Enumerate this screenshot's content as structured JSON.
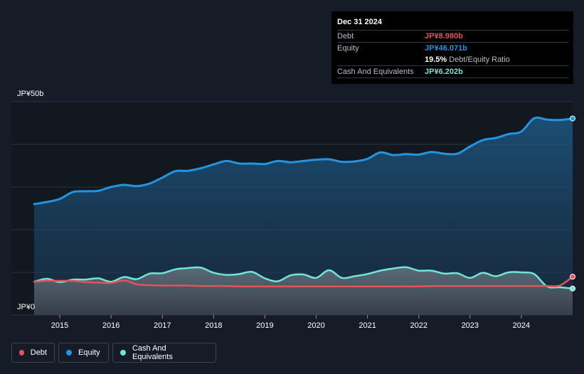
{
  "colors": {
    "debt": "#e8505b",
    "equity": "#2394df",
    "cash": "#72e5d5",
    "background": "#161c27",
    "grid": "#2d3440"
  },
  "tooltip": {
    "date": "Dec 31 2024",
    "rows": {
      "debt": {
        "label": "Debt",
        "value": "JP¥8.980b"
      },
      "equity": {
        "label": "Equity",
        "value": "JP¥46.071b"
      },
      "ratio": {
        "value": "19.5%",
        "label": "Debt/Equity Ratio"
      },
      "cash": {
        "label": "Cash And Equivalents",
        "value": "JP¥6.202b"
      }
    }
  },
  "legend": [
    {
      "key": "debt",
      "label": "Debt"
    },
    {
      "key": "equity",
      "label": "Equity"
    },
    {
      "key": "cash",
      "label": "Cash And Equivalents"
    }
  ],
  "chart_data": {
    "type": "area",
    "y_top_label": "JP¥50b",
    "y_bottom_label": "JP¥0",
    "ylim": [
      0,
      50
    ],
    "xlim": [
      2014.5,
      2025.0
    ],
    "x_ticks": [
      "2015",
      "2016",
      "2017",
      "2018",
      "2019",
      "2020",
      "2021",
      "2022",
      "2023",
      "2024"
    ],
    "grid": true,
    "legend_position": "bottom-left",
    "series": [
      {
        "name": "Equity",
        "key": "equity",
        "points": [
          [
            2014.5,
            26.0
          ],
          [
            2014.75,
            26.5
          ],
          [
            2015.0,
            27.2
          ],
          [
            2015.25,
            28.8
          ],
          [
            2015.5,
            29.0
          ],
          [
            2015.75,
            29.1
          ],
          [
            2016.0,
            30.0
          ],
          [
            2016.25,
            30.5
          ],
          [
            2016.5,
            30.2
          ],
          [
            2016.75,
            30.8
          ],
          [
            2017.0,
            32.2
          ],
          [
            2017.25,
            33.7
          ],
          [
            2017.5,
            33.8
          ],
          [
            2017.75,
            34.4
          ],
          [
            2018.0,
            35.3
          ],
          [
            2018.25,
            36.1
          ],
          [
            2018.5,
            35.5
          ],
          [
            2018.75,
            35.5
          ],
          [
            2019.0,
            35.4
          ],
          [
            2019.25,
            36.1
          ],
          [
            2019.5,
            35.8
          ],
          [
            2019.75,
            36.1
          ],
          [
            2020.0,
            36.4
          ],
          [
            2020.25,
            36.5
          ],
          [
            2020.5,
            35.9
          ],
          [
            2020.75,
            36.0
          ],
          [
            2021.0,
            36.6
          ],
          [
            2021.25,
            38.1
          ],
          [
            2021.5,
            37.5
          ],
          [
            2021.75,
            37.7
          ],
          [
            2022.0,
            37.6
          ],
          [
            2022.25,
            38.2
          ],
          [
            2022.5,
            37.8
          ],
          [
            2022.75,
            37.8
          ],
          [
            2023.0,
            39.5
          ],
          [
            2023.25,
            41.0
          ],
          [
            2023.5,
            41.5
          ],
          [
            2023.75,
            42.4
          ],
          [
            2024.0,
            43.0
          ],
          [
            2024.25,
            46.1
          ],
          [
            2024.5,
            45.8
          ],
          [
            2024.75,
            45.7
          ],
          [
            2025.0,
            46.071
          ]
        ]
      },
      {
        "name": "Cash And Equivalents",
        "key": "cash",
        "points": [
          [
            2014.5,
            7.8
          ],
          [
            2014.75,
            8.5
          ],
          [
            2015.0,
            7.7
          ],
          [
            2015.25,
            8.3
          ],
          [
            2015.5,
            8.3
          ],
          [
            2015.75,
            8.6
          ],
          [
            2016.0,
            7.8
          ],
          [
            2016.25,
            8.9
          ],
          [
            2016.5,
            8.4
          ],
          [
            2016.75,
            9.7
          ],
          [
            2017.0,
            9.8
          ],
          [
            2017.25,
            10.7
          ],
          [
            2017.5,
            11.0
          ],
          [
            2017.75,
            11.1
          ],
          [
            2018.0,
            9.9
          ],
          [
            2018.25,
            9.4
          ],
          [
            2018.5,
            9.6
          ],
          [
            2018.75,
            10.1
          ],
          [
            2019.0,
            8.6
          ],
          [
            2019.25,
            7.9
          ],
          [
            2019.5,
            9.3
          ],
          [
            2019.75,
            9.5
          ],
          [
            2020.0,
            8.7
          ],
          [
            2020.25,
            10.5
          ],
          [
            2020.5,
            8.7
          ],
          [
            2020.75,
            9.1
          ],
          [
            2021.0,
            9.6
          ],
          [
            2021.25,
            10.4
          ],
          [
            2021.5,
            10.9
          ],
          [
            2021.75,
            11.2
          ],
          [
            2022.0,
            10.4
          ],
          [
            2022.25,
            10.4
          ],
          [
            2022.5,
            9.7
          ],
          [
            2022.75,
            9.8
          ],
          [
            2023.0,
            8.7
          ],
          [
            2023.25,
            9.9
          ],
          [
            2023.5,
            9.1
          ],
          [
            2023.75,
            10.0
          ],
          [
            2024.0,
            10.0
          ],
          [
            2024.25,
            9.6
          ],
          [
            2024.5,
            6.7
          ],
          [
            2024.75,
            6.5
          ],
          [
            2025.0,
            6.202
          ]
        ]
      },
      {
        "name": "Debt",
        "key": "debt",
        "points": [
          [
            2014.5,
            7.8
          ],
          [
            2014.75,
            8.0
          ],
          [
            2015.0,
            8.0
          ],
          [
            2015.25,
            8.0
          ],
          [
            2015.5,
            7.7
          ],
          [
            2015.75,
            7.6
          ],
          [
            2016.0,
            7.5
          ],
          [
            2016.25,
            8.1
          ],
          [
            2016.5,
            7.2
          ],
          [
            2016.75,
            7.0
          ],
          [
            2017.0,
            6.9
          ],
          [
            2017.25,
            6.9
          ],
          [
            2017.5,
            6.9
          ],
          [
            2017.75,
            6.8
          ],
          [
            2018.0,
            6.8
          ],
          [
            2018.25,
            6.8
          ],
          [
            2018.5,
            6.7
          ],
          [
            2018.75,
            6.7
          ],
          [
            2019.0,
            6.7
          ],
          [
            2019.25,
            6.7
          ],
          [
            2019.5,
            6.7
          ],
          [
            2019.75,
            6.7
          ],
          [
            2020.0,
            6.7
          ],
          [
            2020.25,
            6.7
          ],
          [
            2020.5,
            6.7
          ],
          [
            2020.75,
            6.7
          ],
          [
            2021.0,
            6.7
          ],
          [
            2021.25,
            6.7
          ],
          [
            2021.5,
            6.7
          ],
          [
            2021.75,
            6.7
          ],
          [
            2022.0,
            6.7
          ],
          [
            2022.25,
            6.8
          ],
          [
            2022.5,
            6.8
          ],
          [
            2022.75,
            6.8
          ],
          [
            2023.0,
            6.8
          ],
          [
            2023.25,
            6.8
          ],
          [
            2023.5,
            6.8
          ],
          [
            2023.75,
            6.8
          ],
          [
            2024.0,
            6.8
          ],
          [
            2024.25,
            6.8
          ],
          [
            2024.5,
            6.8
          ],
          [
            2024.75,
            6.9
          ],
          [
            2025.0,
            8.98
          ]
        ]
      }
    ]
  }
}
